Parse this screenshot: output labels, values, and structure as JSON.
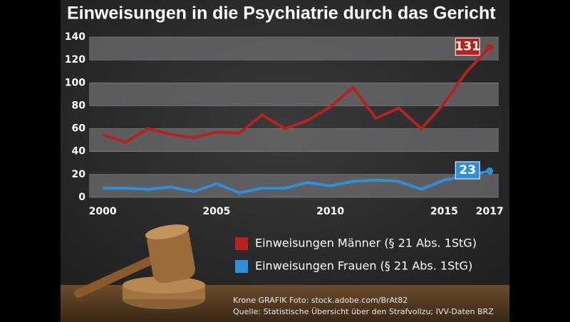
{
  "chart_data": {
    "type": "line",
    "title": "Einweisungen in die Psychiatrie durch das Gericht",
    "x": [
      2000,
      2001,
      2002,
      2003,
      2004,
      2005,
      2006,
      2007,
      2008,
      2009,
      2010,
      2011,
      2012,
      2013,
      2014,
      2015,
      2016,
      2017
    ],
    "series": [
      {
        "name": "Einweisungen Männer (§ 21 Abs. 1StG)",
        "color": "#b8221c",
        "values": [
          55,
          48,
          60,
          55,
          52,
          57,
          56,
          72,
          60,
          67,
          79,
          96,
          69,
          78,
          60,
          82,
          110,
          131
        ]
      },
      {
        "name": "Einweisungen Frauen (§ 21 Abs. 1StG)",
        "color": "#2e8fd8",
        "values": [
          8,
          8,
          7,
          9,
          5,
          12,
          4,
          8,
          8,
          13,
          10,
          14,
          15,
          14,
          7,
          15,
          19,
          23
        ]
      }
    ],
    "xlim": [
      1999.4,
      2017.4
    ],
    "xticks": [
      2000,
      2005,
      2010,
      2015,
      2017
    ],
    "ylim": [
      0,
      140
    ],
    "yticks": [
      0,
      20,
      40,
      60,
      80,
      100,
      120,
      140
    ],
    "credit": "Krone GRAFIK   Foto: stock.adobe.com/BrAt82",
    "source": "Quelle: Statistische Übersicht über den Strafvollzu; IVV-Daten BRZ"
  }
}
